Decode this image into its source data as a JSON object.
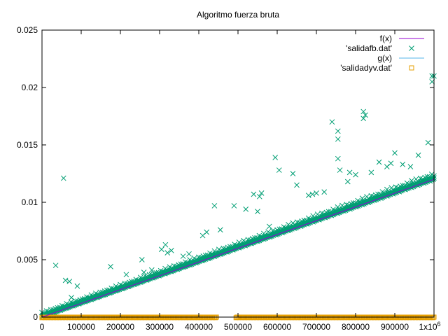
{
  "chart_data": {
    "type": "scatter",
    "title": "Algoritmo fuerza bruta",
    "xlabel": "",
    "ylabel": "",
    "xlim": [
      0,
      1000000
    ],
    "ylim": [
      0,
      0.025
    ],
    "x_ticks": [
      0,
      100000,
      200000,
      300000,
      400000,
      500000,
      600000,
      700000,
      800000,
      900000,
      1000000
    ],
    "x_tick_labels": [
      "0",
      "100000",
      "200000",
      "300000",
      "400000",
      "500000",
      "600000",
      "700000",
      "800000",
      "900000",
      "1x10"
    ],
    "x_tick_label_exponent": "6",
    "y_ticks": [
      0,
      0.005,
      0.01,
      0.015,
      0.02,
      0.025
    ],
    "y_tick_labels": [
      "0",
      "0.005",
      "0.01",
      "0.015",
      "0.02",
      "0.025"
    ],
    "grid": false,
    "legend_position": "top-right",
    "colors": {
      "fx": "#9400d3",
      "salidafb": "#009e73",
      "gx": "#56b4e9",
      "salidadyv": "#e69f00"
    },
    "series": [
      {
        "name": "f(x)",
        "kind": "line",
        "x": [
          0,
          1000000
        ],
        "y": [
          0,
          0.012
        ]
      },
      {
        "name": "'salidafb.dat'",
        "kind": "points",
        "marker": "x",
        "trend": {
          "x": [
            0,
            1000000
          ],
          "y": [
            0.0001,
            0.0121
          ]
        },
        "outliers": {
          "x": [
            35000,
            55000,
            60000,
            70000,
            75000,
            90000,
            175000,
            215000,
            255000,
            260000,
            280000,
            305000,
            315000,
            320000,
            330000,
            360000,
            375000,
            410000,
            420000,
            440000,
            455000,
            490000,
            520000,
            540000,
            550000,
            555000,
            560000,
            580000,
            595000,
            605000,
            640000,
            650000,
            680000,
            690000,
            700000,
            720000,
            740000,
            755000,
            755000,
            755000,
            760000,
            780000,
            785000,
            800000,
            820000,
            820000,
            825000,
            840000,
            860000,
            880000,
            890000,
            900000,
            920000,
            940000,
            960000,
            985000,
            995000,
            995000,
            1000000
          ],
          "y": [
            0.0045,
            0.0121,
            0.0032,
            0.0031,
            0.0017,
            0.0027,
            0.0044,
            0.0037,
            0.005,
            0.0039,
            0.0041,
            0.0059,
            0.0063,
            0.0056,
            0.0058,
            0.0053,
            0.0055,
            0.0071,
            0.0074,
            0.0097,
            0.0076,
            0.0097,
            0.0094,
            0.0107,
            0.0092,
            0.0105,
            0.0108,
            0.0079,
            0.0139,
            0.0128,
            0.0125,
            0.0115,
            0.0106,
            0.0107,
            0.0108,
            0.0109,
            0.017,
            0.0162,
            0.0138,
            0.0155,
            0.0128,
            0.0118,
            0.0126,
            0.0124,
            0.0179,
            0.0173,
            0.0176,
            0.0126,
            0.0135,
            0.0131,
            0.0134,
            0.0143,
            0.0133,
            0.0131,
            0.0141,
            0.0152,
            0.021,
            0.0205,
            0.021
          ]
        }
      },
      {
        "name": "g(x)",
        "kind": "line",
        "x": [
          0,
          1000000
        ],
        "y": [
          0,
          0
        ]
      },
      {
        "name": "'salidadyv.dat'",
        "kind": "points",
        "marker": "square",
        "segments": [
          {
            "x": [
              0,
              445000
            ],
            "y": 0
          },
          {
            "x": [
              495000,
              1000000
            ],
            "y": 0
          }
        ]
      }
    ]
  }
}
